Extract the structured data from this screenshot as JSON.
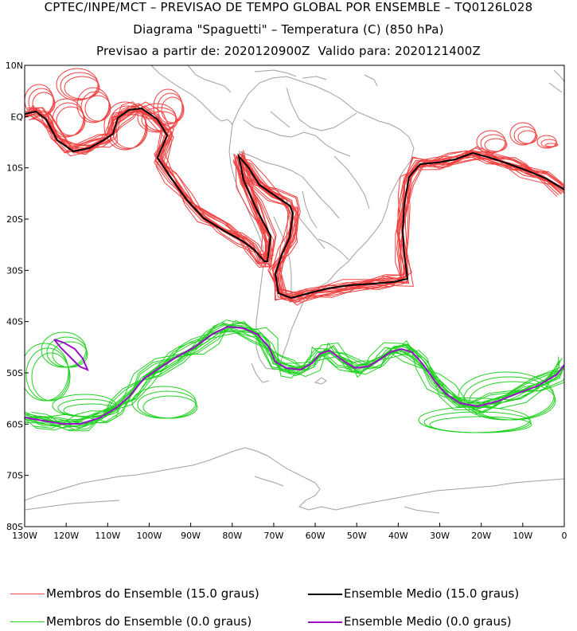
{
  "header": {
    "line1": "CPTEC/INPE/MCT – PREVISAO DE TEMPO GLOBAL POR ENSEMBLE – TQ0126L028",
    "line2": "Diagrama \"Spaguetti\" – Temperatura (C) (850 hPa)",
    "line3": "Previsao a partir de: 2020120900Z  Valido para: 2020121400Z"
  },
  "axes": {
    "lat_labels": [
      "10N",
      "EQ",
      "10S",
      "20S",
      "30S",
      "40S",
      "50S",
      "60S",
      "70S",
      "80S"
    ],
    "lon_labels": [
      "130W",
      "120W",
      "110W",
      "100W",
      "90W",
      "80W",
      "70W",
      "60W",
      "50W",
      "40W",
      "30W",
      "20W",
      "10W",
      "0"
    ],
    "lat_range": [
      10,
      -80
    ],
    "lon_range": [
      -130,
      0
    ]
  },
  "legend": {
    "red_members": "Membros do Ensemble (15.0 graus)",
    "black_mean": "Ensemble Medio (15.0 graus)",
    "green_members": "Membros do Ensemble (0.0 graus)",
    "purple_mean": "Ensemble Medio (0.0 graus)"
  },
  "colors": {
    "red_members": "#f04040",
    "black_mean": "#000000",
    "green_members": "#22d022",
    "purple_mean": "#9a10c8",
    "coast": "#a0a0a0"
  }
}
